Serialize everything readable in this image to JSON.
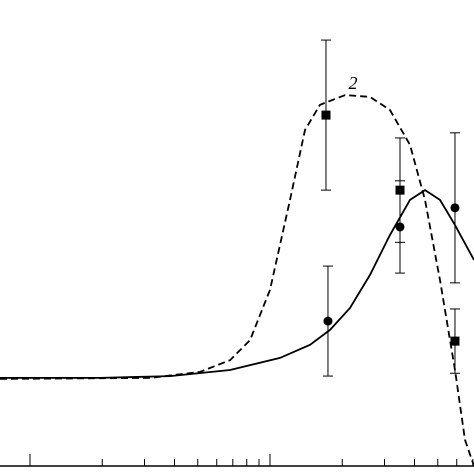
{
  "chart_data": {
    "type": "line",
    "xscale": "log",
    "xlim": [
      0.75,
      70.79
    ],
    "ylim": [
      0,
      100
    ],
    "xticks": [
      1,
      2,
      3,
      4,
      5,
      6,
      7,
      8,
      9,
      10,
      20,
      30,
      40,
      50,
      60,
      70
    ],
    "series": [
      {
        "style": "solid",
        "color": "#000000",
        "x": [
          0.75,
          1.957,
          3.831,
          6.813,
          11.01,
          14.68,
          17.78,
          21.54,
          26.1,
          31.62,
          38.31,
          44.23,
          51.09,
          58.98,
          70.79
        ],
        "values": [
          18.9,
          18.9,
          19.3,
          20.6,
          23.2,
          26.0,
          29.2,
          33.9,
          41.0,
          49.6,
          57.1,
          59.2,
          57.1,
          51.7,
          44.2
        ]
      },
      {
        "name": "2",
        "style": "dashed",
        "color": "#000000",
        "x": [
          0.75,
          3.162,
          5.109,
          6.813,
          8.254,
          10,
          12.12,
          13.99,
          16.16,
          20.54,
          26.1,
          31.62,
          38.31,
          44.23,
          51.09,
          58.98,
          64.94,
          70.79
        ],
        "values": [
          18.7,
          18.9,
          20.2,
          22.7,
          27.0,
          37.8,
          57.1,
          72.1,
          77.5,
          79.6,
          79.2,
          76.4,
          68.9,
          57.1,
          39.9,
          20.6,
          5.6,
          0
        ]
      },
      {
        "marker": "circle",
        "color": "#000000",
        "x": [
          17.44,
          34.81,
          58.98
        ],
        "values": [
          31.1,
          51.3,
          55.4
        ],
        "error": [
          11.8,
          9.9,
          16.1
        ]
      },
      {
        "marker": "square",
        "color": "#000000",
        "x": [
          17.11,
          34.81,
          58.98
        ],
        "values": [
          75.3,
          59.2,
          26.8
        ],
        "error": [
          16.1,
          11.2,
          6.9
        ]
      }
    ]
  }
}
